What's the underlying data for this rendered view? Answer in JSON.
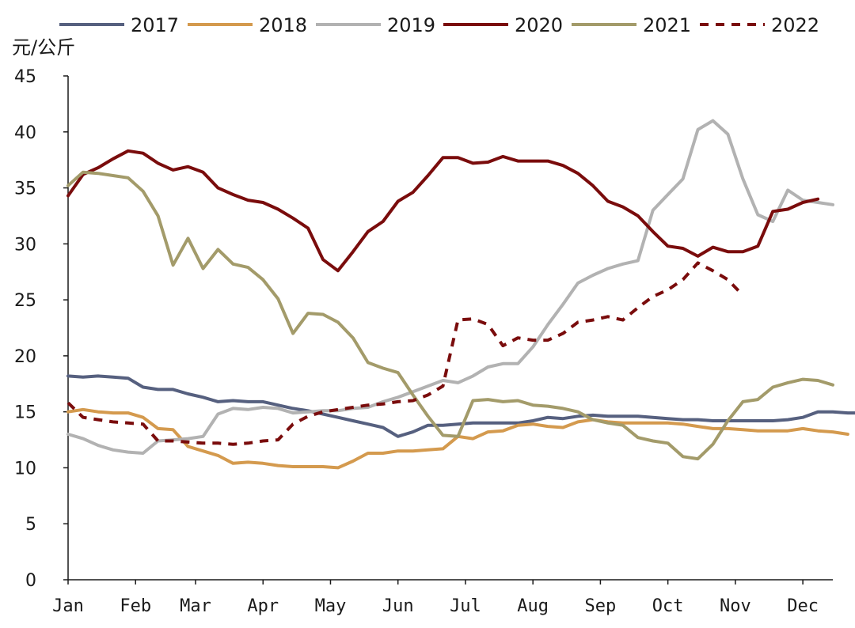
{
  "chart_data": {
    "type": "line",
    "ylabel": "元/公斤",
    "ylim": [
      0,
      45
    ],
    "yticks": [
      0,
      5,
      10,
      15,
      20,
      25,
      30,
      35,
      40,
      45
    ],
    "xlim": [
      1,
      52
    ],
    "months": [
      "Jan",
      "Feb",
      "Mar",
      "Apr",
      "May",
      "Jun",
      "Jul",
      "Aug",
      "Sep",
      "Oct",
      "Nov",
      "Dec"
    ],
    "month_week": [
      1,
      5.5,
      9.5,
      14,
      18.5,
      23,
      27.5,
      32,
      36.5,
      41,
      45.5,
      50
    ],
    "legend_position": "top",
    "grid": false,
    "series": [
      {
        "name": "2017",
        "color": "#56607f",
        "style": "solid",
        "values": [
          18.2,
          18.1,
          18.2,
          18.1,
          18.0,
          17.2,
          17.0,
          17.0,
          16.6,
          16.3,
          15.9,
          16.0,
          15.9,
          15.9,
          15.6,
          15.3,
          15.1,
          14.8,
          14.5,
          14.2,
          13.9,
          13.6,
          12.8,
          13.2,
          13.8,
          13.8,
          13.9,
          14.0,
          14.0,
          14.0,
          14.0,
          14.2,
          14.5,
          14.4,
          14.6,
          14.7,
          14.6,
          14.6,
          14.6,
          14.5,
          14.4,
          14.3,
          14.3,
          14.2,
          14.2,
          14.2,
          14.2,
          14.2,
          14.3,
          14.5,
          15.0,
          15.0,
          14.9,
          14.9
        ]
      },
      {
        "name": "2018",
        "color": "#d49a4e",
        "style": "solid",
        "values": [
          15.0,
          15.2,
          15.0,
          14.9,
          14.9,
          14.5,
          13.5,
          13.4,
          11.9,
          11.5,
          11.1,
          10.4,
          10.5,
          10.4,
          10.2,
          10.1,
          10.1,
          10.1,
          10.0,
          10.6,
          11.3,
          11.3,
          11.5,
          11.5,
          11.6,
          11.7,
          12.8,
          12.6,
          13.2,
          13.3,
          13.8,
          13.9,
          13.7,
          13.6,
          14.1,
          14.3,
          14.1,
          14.0,
          14.0,
          14.0,
          14.0,
          13.9,
          13.7,
          13.5,
          13.5,
          13.4,
          13.3,
          13.3,
          13.3,
          13.5,
          13.3,
          13.2,
          13.0
        ]
      },
      {
        "name": "2019",
        "color": "#b2b2b2",
        "style": "solid",
        "values": [
          13.0,
          12.6,
          12.0,
          11.6,
          11.4,
          11.3,
          12.4,
          12.5,
          12.6,
          12.8,
          14.8,
          15.3,
          15.2,
          15.4,
          15.3,
          14.9,
          15.0,
          15.1,
          15.1,
          15.3,
          15.4,
          15.9,
          16.3,
          16.8,
          17.3,
          17.8,
          17.6,
          18.2,
          19.0,
          19.3,
          19.3,
          20.8,
          22.8,
          24.6,
          26.5,
          27.2,
          27.8,
          28.2,
          28.5,
          33.0,
          34.4,
          35.8,
          40.2,
          41.0,
          39.8,
          35.8,
          32.6,
          32.0,
          34.8,
          33.9,
          33.7,
          33.5
        ]
      },
      {
        "name": "2020",
        "color": "#7a0c0c",
        "style": "solid",
        "values": [
          34.3,
          36.2,
          36.8,
          37.6,
          38.3,
          38.1,
          37.2,
          36.6,
          36.9,
          36.4,
          35.0,
          34.4,
          33.9,
          33.7,
          33.1,
          32.3,
          31.4,
          28.6,
          27.6,
          29.3,
          31.1,
          32.0,
          33.8,
          34.6,
          36.1,
          37.7,
          37.7,
          37.2,
          37.3,
          37.8,
          37.4,
          37.4,
          37.4,
          37.0,
          36.3,
          35.2,
          33.8,
          33.3,
          32.5,
          31.1,
          29.8,
          29.6,
          28.9,
          29.7,
          29.3,
          29.3,
          29.8,
          32.9,
          33.1,
          33.7,
          34.0
        ]
      },
      {
        "name": "2021",
        "color": "#a39b6a",
        "style": "solid",
        "values": [
          35.2,
          36.4,
          36.3,
          36.1,
          35.9,
          34.7,
          32.5,
          28.1,
          30.5,
          27.8,
          29.5,
          28.2,
          27.9,
          26.8,
          25.1,
          22.0,
          23.8,
          23.7,
          23.0,
          21.6,
          19.4,
          18.9,
          18.5,
          16.5,
          14.6,
          12.9,
          12.8,
          16.0,
          16.1,
          15.9,
          16.0,
          15.6,
          15.5,
          15.3,
          15.0,
          14.3,
          14.0,
          13.8,
          12.7,
          12.4,
          12.2,
          11.0,
          10.8,
          12.1,
          14.2,
          15.9,
          16.1,
          17.2,
          17.6,
          17.9,
          17.8,
          17.4
        ]
      },
      {
        "name": "2022",
        "color": "#7a0c0c",
        "style": "dashed",
        "values": [
          15.8,
          14.5,
          14.3,
          14.1,
          14.0,
          13.9,
          12.4,
          12.4,
          12.3,
          12.2,
          12.2,
          12.1,
          12.2,
          12.4,
          12.5,
          13.9,
          14.6,
          15.0,
          15.2,
          15.4,
          15.6,
          15.7,
          15.9,
          16.0,
          16.5,
          17.3,
          23.2,
          23.3,
          22.8,
          20.9,
          21.6,
          21.4,
          21.4,
          22.0,
          23.0,
          23.2,
          23.5,
          23.2,
          24.3,
          25.3,
          25.9,
          26.8,
          28.3,
          27.6,
          26.8,
          25.4
        ]
      }
    ]
  }
}
